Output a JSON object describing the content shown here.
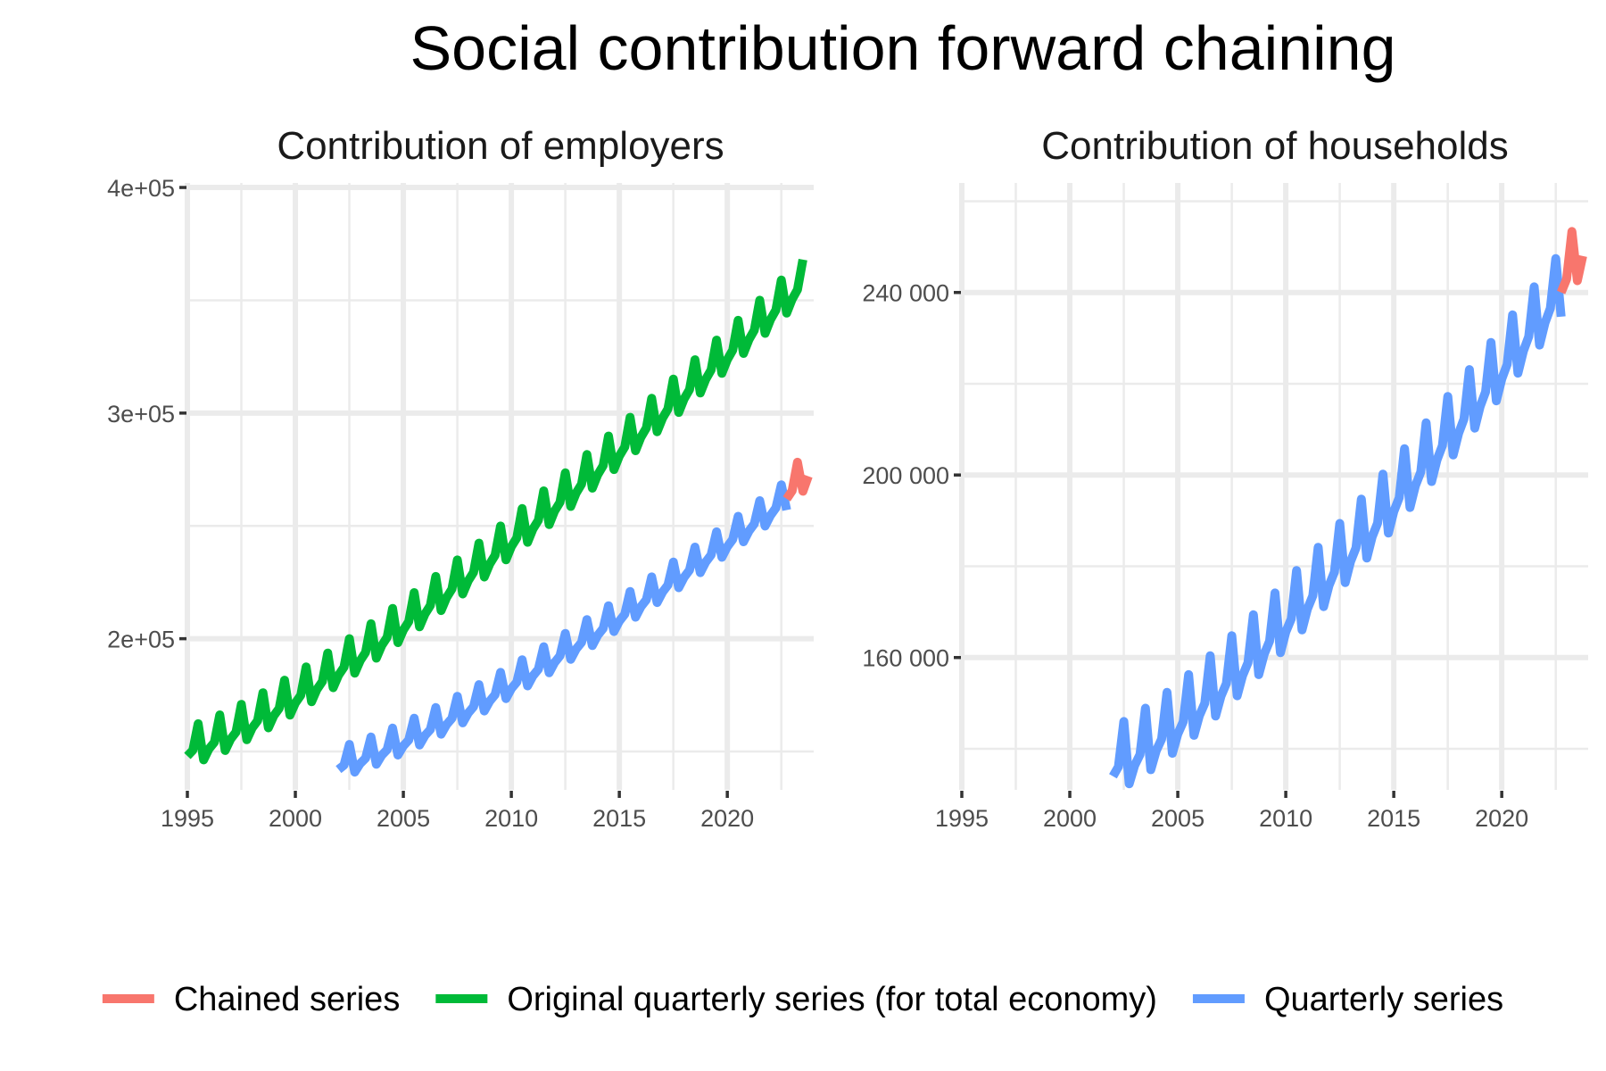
{
  "title": "Social contribution forward chaining",
  "colors": {
    "chained": "#F8766D",
    "original": "#00BA38",
    "quarterly": "#619CFF"
  },
  "legend": {
    "position": "bottom",
    "items": [
      {
        "key": "chained",
        "label": "Chained series"
      },
      {
        "key": "original",
        "label": "Original quarterly series (for total economy)"
      },
      {
        "key": "quarterly",
        "label": "Quarterly series"
      }
    ]
  },
  "chart_data": [
    {
      "type": "line",
      "title": "Contribution of employers",
      "xlabel": "",
      "ylabel": "",
      "xlim": [
        1995,
        2024
      ],
      "ylim": [
        133000,
        402000
      ],
      "x_ticks": [
        1995,
        2000,
        2005,
        2010,
        2015,
        2020
      ],
      "x_tick_labels": [
        "1995",
        "2000",
        "2005",
        "2010",
        "2015",
        "2020"
      ],
      "y_ticks": [
        200000,
        300000,
        400000
      ],
      "y_tick_labels": [
        "2e+05",
        "3e+05",
        "4e+05"
      ],
      "grid": true,
      "series": [
        {
          "name": "Original quarterly series (for total economy)",
          "key": "original",
          "start": 1995.0,
          "end": 2023.5,
          "start_value": 148000,
          "end_value": 355000,
          "seasonal_amplitude": 13000
        },
        {
          "name": "Quarterly series",
          "key": "quarterly",
          "start": 2002.0,
          "end": 2022.75,
          "start_value": 142000,
          "end_value": 260000,
          "seasonal_amplitude": 10000
        },
        {
          "name": "Chained series",
          "key": "chained",
          "start": 2022.75,
          "end": 2023.75,
          "start_value": 262000,
          "end_value": 272000,
          "seasonal_amplitude": 12000
        }
      ]
    },
    {
      "type": "line",
      "title": "Contribution of households",
      "xlabel": "",
      "ylabel": "",
      "xlim": [
        1995,
        2024
      ],
      "ylim": [
        131000,
        264000
      ],
      "x_ticks": [
        1995,
        2000,
        2005,
        2010,
        2015,
        2020
      ],
      "x_tick_labels": [
        "1995",
        "2000",
        "2005",
        "2010",
        "2015",
        "2020"
      ],
      "y_ticks": [
        160000,
        200000,
        240000
      ],
      "y_tick_labels": [
        "160 000",
        "200 000",
        "240 000"
      ],
      "grid": true,
      "series": [
        {
          "name": "Quarterly series",
          "key": "quarterly",
          "start": 2002.0,
          "end": 2022.75,
          "start_value": 134000,
          "end_value": 238000,
          "seasonal_amplitude": 11000
        },
        {
          "name": "Chained series",
          "key": "chained",
          "start": 2022.75,
          "end": 2023.75,
          "start_value": 240000,
          "end_value": 248000,
          "seasonal_amplitude": 10000
        }
      ]
    }
  ]
}
